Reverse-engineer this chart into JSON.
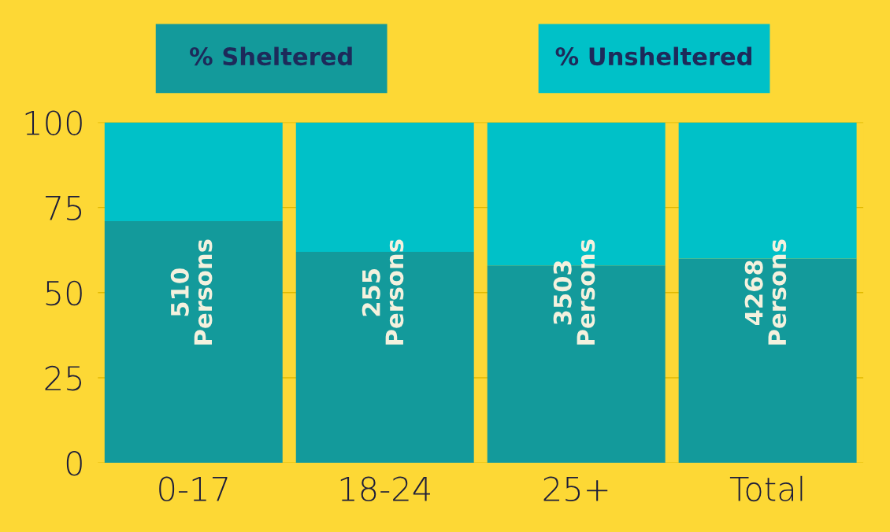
{
  "chart_data": {
    "type": "bar",
    "stacked": true,
    "categories": [
      "0-17",
      "18-24",
      "25+",
      "Total"
    ],
    "series": [
      {
        "name": "% Sheltered",
        "color": "#139a9b",
        "values": [
          71,
          62,
          58,
          60
        ]
      },
      {
        "name": "% Unsheltered",
        "color": "#00c1c8",
        "values": [
          29,
          38,
          42,
          40
        ]
      }
    ],
    "ylim": [
      0,
      100
    ],
    "yticks": [
      0,
      25,
      50,
      75,
      100
    ],
    "grid": "y",
    "legend": "top",
    "annotations": [
      "510\nPersons",
      "255\nPersons",
      "3503\nPersons",
      "4268\nPersons"
    ]
  }
}
